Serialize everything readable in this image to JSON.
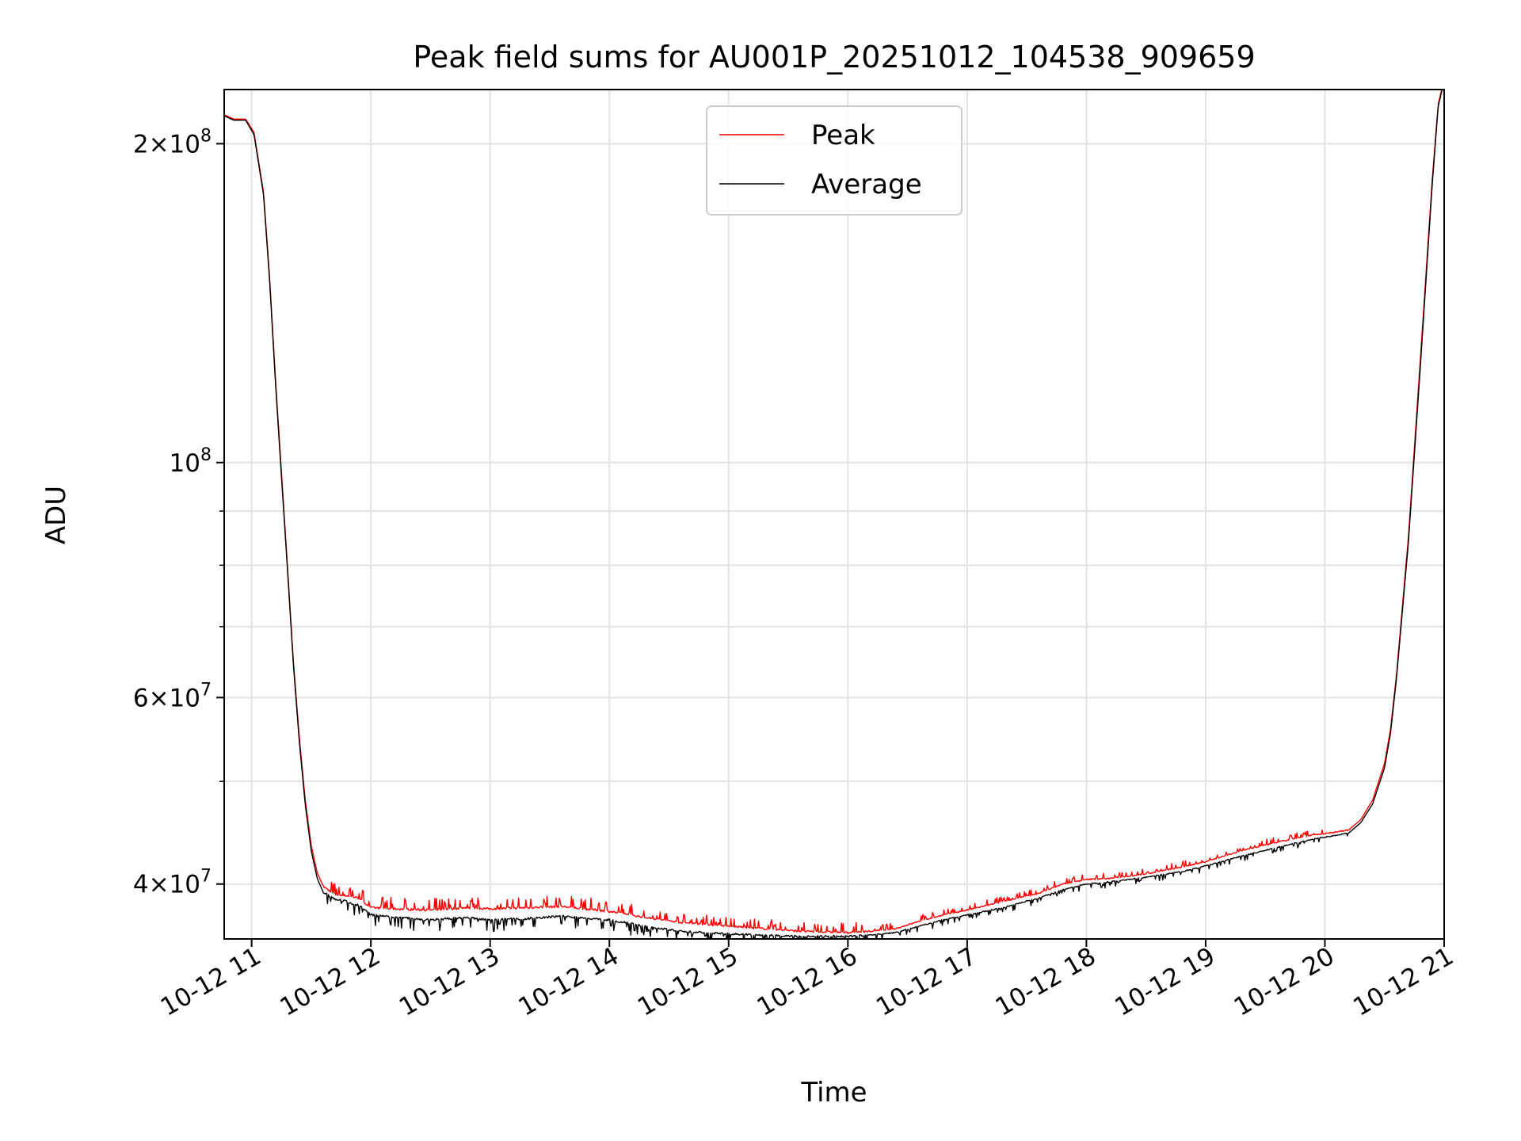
{
  "chart_data": {
    "type": "line",
    "title": "Peak field sums for AU001P_20251012_104538_909659",
    "xlabel": "Time",
    "ylabel": "ADU",
    "yscale": "log",
    "ylim": [
      35500000,
      225000000
    ],
    "x_unit": "hours since 2025-10-12 00:00",
    "xlim": [
      10.77,
      21.0
    ],
    "grid": true,
    "legend_position": "top-center",
    "x_ticks": [
      {
        "value": 11,
        "label": "10-12 11"
      },
      {
        "value": 12,
        "label": "10-12 12"
      },
      {
        "value": 13,
        "label": "10-12 13"
      },
      {
        "value": 14,
        "label": "10-12 14"
      },
      {
        "value": 15,
        "label": "10-12 15"
      },
      {
        "value": 16,
        "label": "10-12 16"
      },
      {
        "value": 17,
        "label": "10-12 17"
      },
      {
        "value": 18,
        "label": "10-12 18"
      },
      {
        "value": 19,
        "label": "10-12 19"
      },
      {
        "value": 20,
        "label": "10-12 20"
      },
      {
        "value": 21,
        "label": "10-12 21"
      }
    ],
    "y_major_ticks": [
      {
        "value": 200000000,
        "mantissa": "2",
        "exponent": "8"
      },
      {
        "value": 100000000,
        "mantissa": "",
        "exponent": "8"
      },
      {
        "value": 60000000,
        "mantissa": "6",
        "exponent": "7"
      },
      {
        "value": 40000000,
        "mantissa": "4",
        "exponent": "7"
      }
    ],
    "y_minor_ticks": [
      50000000,
      70000000,
      80000000,
      90000000
    ],
    "series": [
      {
        "name": "Peak",
        "color": "#ff0000",
        "noise": "positive",
        "x": [
          10.77,
          10.85,
          10.95,
          11.02,
          11.1,
          11.15,
          11.2,
          11.25,
          11.3,
          11.35,
          11.4,
          11.45,
          11.5,
          11.55,
          11.6,
          11.7,
          11.8,
          11.9,
          12.0,
          12.2,
          12.5,
          12.8,
          13.0,
          13.3,
          13.6,
          14.0,
          14.3,
          14.6,
          15.0,
          15.3,
          15.6,
          16.0,
          16.2,
          16.4,
          16.6,
          16.8,
          17.0,
          17.3,
          17.6,
          17.8,
          18.0,
          18.2,
          18.5,
          18.8,
          19.0,
          19.3,
          19.6,
          19.9,
          20.1,
          20.2,
          20.3,
          20.4,
          20.5,
          20.55,
          20.6,
          20.7,
          20.8,
          20.9,
          20.95,
          21.0
        ],
        "y": [
          213000000,
          211000000,
          211000000,
          205000000,
          180000000,
          150000000,
          120000000,
          98000000,
          80000000,
          65000000,
          55000000,
          48000000,
          43500000,
          41000000,
          39800000,
          39100000,
          39000000,
          38800000,
          38000000,
          37900000,
          37800000,
          38000000,
          37900000,
          38000000,
          38100000,
          37700000,
          37200000,
          36800000,
          36500000,
          36300000,
          36100000,
          36000000,
          36100000,
          36300000,
          36900000,
          37400000,
          37800000,
          38500000,
          39200000,
          40000000,
          40400000,
          40500000,
          40900000,
          41500000,
          42000000,
          43000000,
          43800000,
          44500000,
          44800000,
          45000000,
          46000000,
          48000000,
          52000000,
          56000000,
          63000000,
          85000000,
          125000000,
          185000000,
          218000000,
          230000000
        ]
      },
      {
        "name": "Average",
        "color": "#000000",
        "noise": "negative",
        "x": [
          10.77,
          10.85,
          10.95,
          11.02,
          11.1,
          11.15,
          11.2,
          11.25,
          11.3,
          11.35,
          11.4,
          11.45,
          11.5,
          11.55,
          11.6,
          11.7,
          11.8,
          11.9,
          12.0,
          12.2,
          12.5,
          12.8,
          13.0,
          13.3,
          13.6,
          14.0,
          14.3,
          14.6,
          15.0,
          15.3,
          15.6,
          16.0,
          16.2,
          16.4,
          16.6,
          16.8,
          17.0,
          17.3,
          17.6,
          17.8,
          18.0,
          18.2,
          18.5,
          18.8,
          19.0,
          19.3,
          19.6,
          19.9,
          20.1,
          20.2,
          20.3,
          20.4,
          20.5,
          20.55,
          20.6,
          20.7,
          20.8,
          20.9,
          20.95,
          21.0
        ],
        "y": [
          212500000,
          210500000,
          210500000,
          204000000,
          179000000,
          149000000,
          119000000,
          97000000,
          79500000,
          64500000,
          54500000,
          47500000,
          43000000,
          40500000,
          39300000,
          38700000,
          38500000,
          38200000,
          37400000,
          37200000,
          37000000,
          37200000,
          37000000,
          37100000,
          37300000,
          37000000,
          36500000,
          36100000,
          35900000,
          35800000,
          35700000,
          35700000,
          35800000,
          36000000,
          36500000,
          37000000,
          37400000,
          38000000,
          38800000,
          39500000,
          40000000,
          40200000,
          40600000,
          41100000,
          41600000,
          42500000,
          43300000,
          44100000,
          44500000,
          44700000,
          45700000,
          47600000,
          51500000,
          55500000,
          62500000,
          84000000,
          123000000,
          183000000,
          217000000,
          229000000
        ]
      }
    ]
  }
}
